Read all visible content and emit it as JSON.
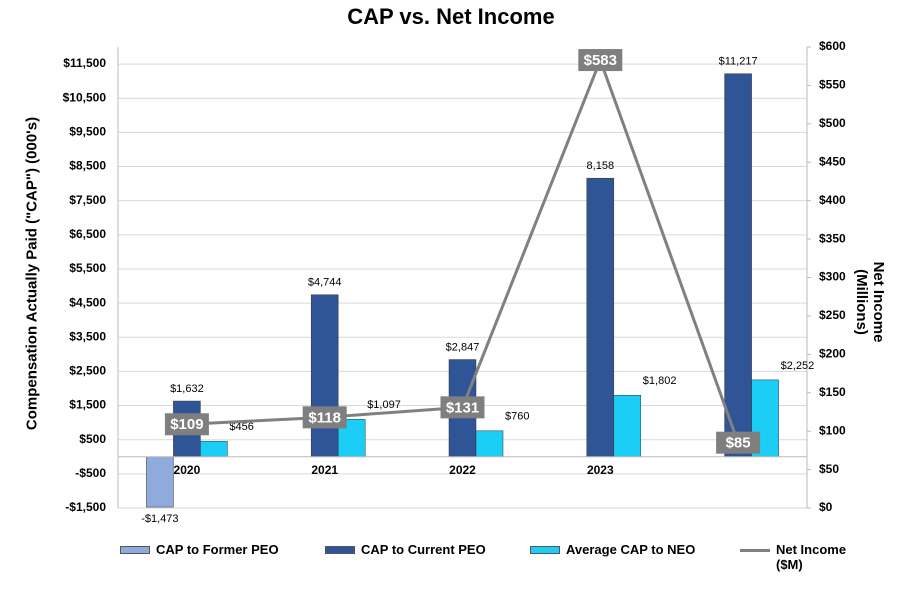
{
  "chart_data": {
    "type": "bar_line",
    "title": "CAP vs. Net Income",
    "y_label": "Compensation Actually Paid (\"CAP\") (000's)",
    "y2_label": "Net Income (Millions)",
    "categories": [
      "2020",
      "2021",
      "2022",
      "2023",
      null
    ],
    "ylim": [
      -1500,
      12000
    ],
    "yticks": [
      {
        "value": -1500,
        "label": "-$1,500"
      },
      {
        "value": -500,
        "label": "-$500"
      },
      {
        "value": 500,
        "label": "$500"
      },
      {
        "value": 1500,
        "label": "$1,500"
      },
      {
        "value": 2500,
        "label": "$2,500"
      },
      {
        "value": 3500,
        "label": "$3,500"
      },
      {
        "value": 4500,
        "label": "$4,500"
      },
      {
        "value": 5500,
        "label": "$5,500"
      },
      {
        "value": 6500,
        "label": "$6,500"
      },
      {
        "value": 7500,
        "label": "$7,500"
      },
      {
        "value": 8500,
        "label": "$8,500"
      },
      {
        "value": 9500,
        "label": "$9,500"
      },
      {
        "value": 10500,
        "label": "$10,500"
      },
      {
        "value": 11500,
        "label": "$11,500"
      }
    ],
    "y2lim": [
      0,
      600
    ],
    "y2ticks": [
      {
        "value": 0,
        "label": "$0"
      },
      {
        "value": 50,
        "label": "$50"
      },
      {
        "value": 100,
        "label": "$100"
      },
      {
        "value": 150,
        "label": "$150"
      },
      {
        "value": 200,
        "label": "$200"
      },
      {
        "value": 250,
        "label": "$250"
      },
      {
        "value": 300,
        "label": "$300"
      },
      {
        "value": 350,
        "label": "$350"
      },
      {
        "value": 400,
        "label": "$400"
      },
      {
        "value": 450,
        "label": "$450"
      },
      {
        "value": 500,
        "label": "$500"
      },
      {
        "value": 550,
        "label": "$550"
      },
      {
        "value": 600,
        "label": "$600"
      }
    ],
    "grid": true,
    "series": [
      {
        "name": "CAP to Former PEO",
        "type": "bar",
        "color": "#8faadc",
        "values": [
          -1473,
          null,
          null,
          null,
          null
        ],
        "value_labels": [
          "-$1,473",
          null,
          null,
          null,
          null
        ]
      },
      {
        "name": "CAP to Current PEO",
        "type": "bar",
        "color": "#2f5597",
        "values": [
          1632,
          4744,
          2847,
          8158,
          11217
        ],
        "value_labels": [
          "$1,632",
          "$4,744",
          "$2,847",
          "8,158",
          "$11,217"
        ]
      },
      {
        "name": "Average CAP to NEO",
        "type": "bar",
        "color": "#1ccdf5",
        "values": [
          456,
          1097,
          760,
          1802,
          2252
        ],
        "value_labels": [
          "$456",
          "$1,097",
          "$760",
          "$1,802",
          "$2,252"
        ]
      },
      {
        "name": "Net Income ($M)",
        "type": "line",
        "axis": "y2",
        "color": "#808080",
        "values": [
          109,
          118,
          131,
          583,
          85
        ],
        "value_labels": [
          "$109",
          "$118",
          "$131",
          "$583",
          "$85"
        ]
      }
    ]
  }
}
